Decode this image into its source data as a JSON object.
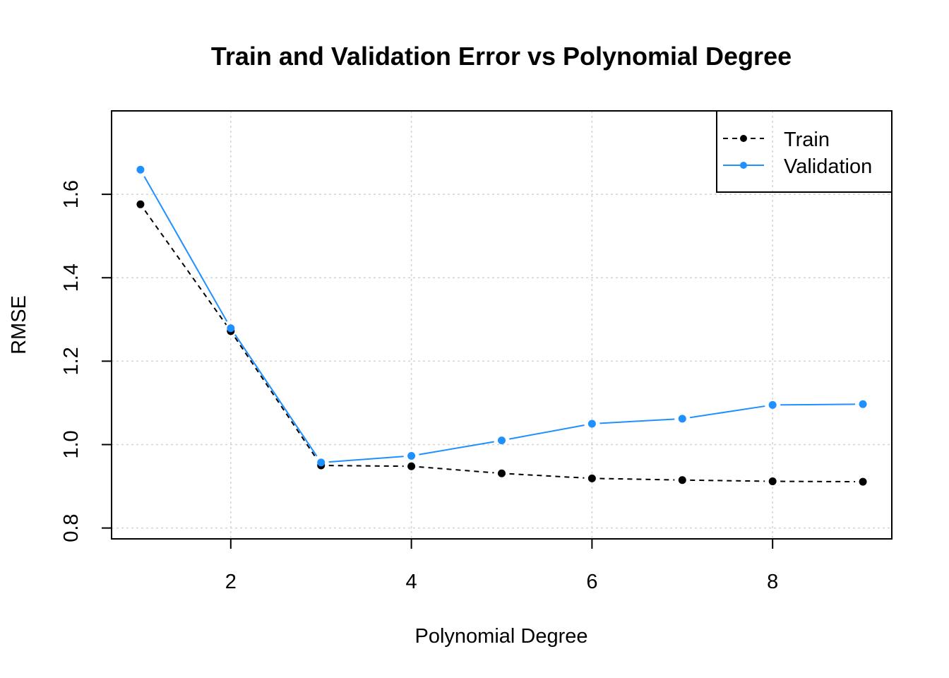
{
  "chart_data": {
    "type": "line",
    "title": "Train and Validation Error vs Polynomial Degree",
    "xlabel": "Polynomial Degree",
    "ylabel": "RMSE",
    "x": [
      1,
      2,
      3,
      4,
      5,
      6,
      7,
      8,
      9
    ],
    "xlim": [
      0.68,
      9.32
    ],
    "ylim": [
      0.774,
      1.8
    ],
    "xticks": [
      2,
      4,
      6,
      8
    ],
    "xtick_labels": [
      "2",
      "4",
      "6",
      "8"
    ],
    "yticks": [
      0.8,
      1.0,
      1.2,
      1.4,
      1.6
    ],
    "ytick_labels": [
      "0.8",
      "1.0",
      "1.2",
      "1.4",
      "1.6"
    ],
    "grid": true,
    "legend_position": "top-right",
    "series": [
      {
        "name": "Train",
        "color": "#000000",
        "line_style": "dashed",
        "values": [
          1.576,
          1.272,
          0.95,
          0.948,
          0.931,
          0.919,
          0.915,
          0.912,
          0.911
        ]
      },
      {
        "name": "Validation",
        "color": "#1E90FF",
        "line_style": "solid",
        "values": [
          1.659,
          1.279,
          0.957,
          0.973,
          1.01,
          1.05,
          1.062,
          1.095,
          1.097
        ]
      }
    ]
  }
}
